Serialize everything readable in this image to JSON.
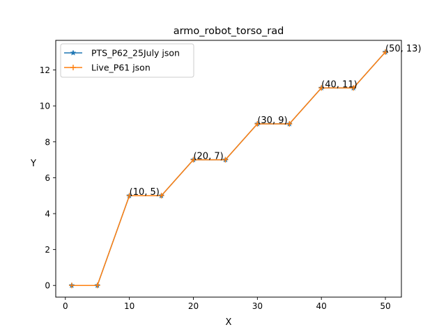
{
  "chart_data": {
    "type": "line",
    "title": "armo_robot_torso_rad",
    "xlabel": "X",
    "ylabel": "Y",
    "xlim": [
      -1.5,
      52.5
    ],
    "ylim": [
      -0.65,
      13.65
    ],
    "xticks": [
      0,
      10,
      20,
      30,
      40,
      50
    ],
    "yticks": [
      0,
      2,
      4,
      6,
      8,
      10,
      12
    ],
    "x": [
      1,
      5,
      10,
      15,
      20,
      25,
      30,
      35,
      40,
      45,
      50
    ],
    "series": [
      {
        "name": "PTS_P62_25July json",
        "color": "#1f77b4",
        "marker": "star",
        "values": [
          0,
          0,
          5,
          5,
          7,
          7,
          9,
          9,
          11,
          11,
          13
        ]
      },
      {
        "name": "Live_P61 json",
        "color": "#ff7f0e",
        "marker": "plus",
        "values": [
          0,
          0,
          5,
          5,
          7,
          7,
          9,
          9,
          11,
          11,
          13
        ]
      }
    ],
    "annotations": [
      {
        "x": 10,
        "y": 5,
        "text": "(10, 5)"
      },
      {
        "x": 20,
        "y": 7,
        "text": "(20, 7)"
      },
      {
        "x": 30,
        "y": 9,
        "text": "(30, 9)"
      },
      {
        "x": 40,
        "y": 11,
        "text": "(40, 11)"
      },
      {
        "x": 50,
        "y": 13,
        "text": "(50, 13)"
      }
    ],
    "legend": "upper-left",
    "grid": false
  }
}
